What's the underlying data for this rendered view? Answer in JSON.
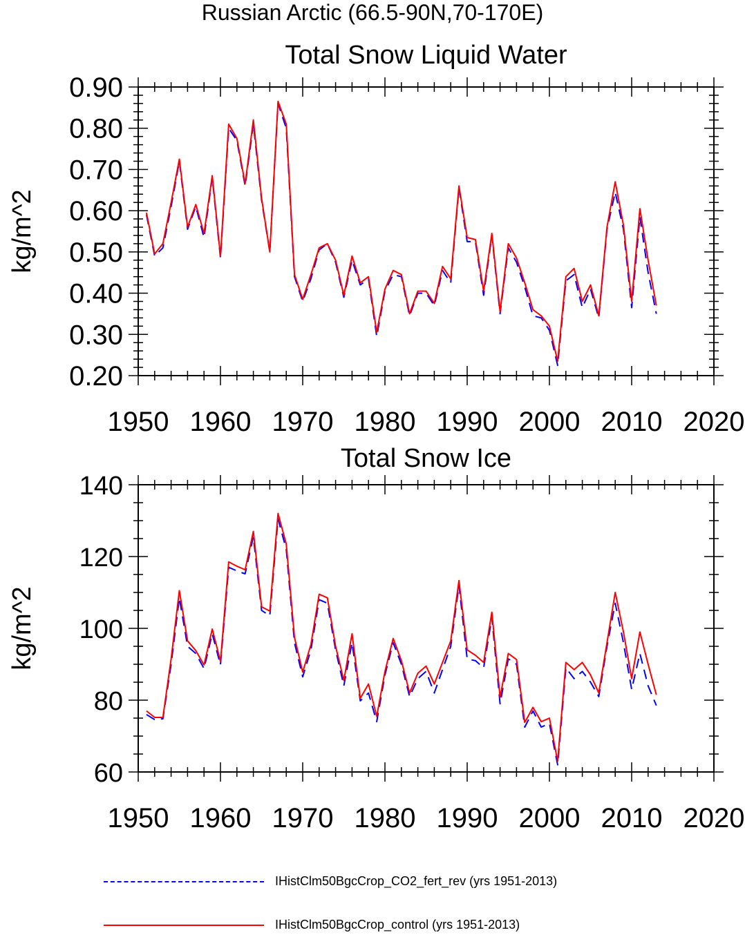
{
  "figure": {
    "title": "Russian Arctic (66.5-90N,70-170E)"
  },
  "legend": [
    {
      "label": "IHistClm50BgcCrop_CO2_fert_rev (yrs 1951-2013)",
      "color": "#0000ff",
      "style": "dashed"
    },
    {
      "label": "IHistClm50BgcCrop_control (yrs 1951-2013)",
      "color": "#ff0000",
      "style": "solid"
    }
  ],
  "chart_data": [
    {
      "type": "line",
      "title": "Total Snow Liquid Water",
      "ylabel": "kg/m^2",
      "xlabel": "",
      "xlim": [
        1950,
        2020
      ],
      "ylim": [
        0.2,
        0.9
      ],
      "xticks": [
        "1950",
        "1960",
        "1970",
        "1980",
        "1990",
        "2000",
        "2010",
        "2020"
      ],
      "yticks": [
        "0.20",
        "0.30",
        "0.40",
        "0.50",
        "0.60",
        "0.70",
        "0.80",
        "0.90"
      ],
      "x": [
        1951,
        1952,
        1953,
        1954,
        1955,
        1956,
        1957,
        1958,
        1959,
        1960,
        1961,
        1962,
        1963,
        1964,
        1965,
        1966,
        1967,
        1968,
        1969,
        1970,
        1971,
        1972,
        1973,
        1974,
        1975,
        1976,
        1977,
        1978,
        1979,
        1980,
        1981,
        1982,
        1983,
        1984,
        1985,
        1986,
        1987,
        1988,
        1989,
        1990,
        1991,
        1992,
        1993,
        1994,
        1995,
        1996,
        1997,
        1998,
        1999,
        2000,
        2001,
        2002,
        2003,
        2004,
        2005,
        2006,
        2007,
        2008,
        2009,
        2010,
        2011,
        2012,
        2013
      ],
      "series": [
        {
          "name": "IHistClm50BgcCrop_CO2_fert_rev (yrs 1951-2013)",
          "color": "#0000ff",
          "style": "dashed",
          "values": [
            0.59,
            0.49,
            0.51,
            0.61,
            0.72,
            0.555,
            0.61,
            0.535,
            0.68,
            0.485,
            0.8,
            0.77,
            0.66,
            0.81,
            0.625,
            0.5,
            0.86,
            0.8,
            0.44,
            0.38,
            0.435,
            0.505,
            0.52,
            0.475,
            0.39,
            0.48,
            0.42,
            0.435,
            0.295,
            0.405,
            0.445,
            0.44,
            0.345,
            0.4,
            0.4,
            0.37,
            0.455,
            0.425,
            0.655,
            0.525,
            0.525,
            0.395,
            0.54,
            0.35,
            0.51,
            0.475,
            0.415,
            0.345,
            0.34,
            0.31,
            0.225,
            0.43,
            0.445,
            0.365,
            0.41,
            0.34,
            0.555,
            0.645,
            0.555,
            0.365,
            0.585,
            0.45,
            0.35
          ]
        },
        {
          "name": "IHistClm50BgcCrop_control (yrs 1951-2013)",
          "color": "#ff0000",
          "style": "solid",
          "values": [
            0.595,
            0.495,
            0.52,
            0.62,
            0.725,
            0.56,
            0.615,
            0.545,
            0.685,
            0.49,
            0.81,
            0.775,
            0.665,
            0.82,
            0.63,
            0.5,
            0.865,
            0.81,
            0.445,
            0.385,
            0.445,
            0.51,
            0.52,
            0.48,
            0.395,
            0.49,
            0.425,
            0.44,
            0.305,
            0.41,
            0.455,
            0.445,
            0.35,
            0.405,
            0.405,
            0.375,
            0.465,
            0.435,
            0.66,
            0.535,
            0.53,
            0.405,
            0.545,
            0.355,
            0.52,
            0.485,
            0.425,
            0.36,
            0.345,
            0.32,
            0.235,
            0.44,
            0.46,
            0.38,
            0.42,
            0.345,
            0.56,
            0.67,
            0.565,
            0.38,
            0.605,
            0.48,
            0.37
          ]
        }
      ]
    },
    {
      "type": "line",
      "title": "Total Snow Ice",
      "ylabel": "kg/m^2",
      "xlabel": "",
      "xlim": [
        1950,
        2020
      ],
      "ylim": [
        60,
        140
      ],
      "xticks": [
        "1950",
        "1960",
        "1970",
        "1980",
        "1990",
        "2000",
        "2010",
        "2020"
      ],
      "yticks": [
        "60",
        "80",
        "100",
        "120",
        "140"
      ],
      "x": [
        1951,
        1952,
        1953,
        1954,
        1955,
        1956,
        1957,
        1958,
        1959,
        1960,
        1961,
        1962,
        1963,
        1964,
        1965,
        1966,
        1967,
        1968,
        1969,
        1970,
        1971,
        1972,
        1973,
        1974,
        1975,
        1976,
        1977,
        1978,
        1979,
        1980,
        1981,
        1982,
        1983,
        1984,
        1985,
        1986,
        1987,
        1988,
        1989,
        1990,
        1991,
        1992,
        1993,
        1994,
        1995,
        1996,
        1997,
        1998,
        1999,
        2000,
        2001,
        2002,
        2003,
        2004,
        2005,
        2006,
        2007,
        2008,
        2009,
        2010,
        2011,
        2012,
        2013
      ],
      "series": [
        {
          "name": "IHistClm50BgcCrop_CO2_fert_rev (yrs 1951-2013)",
          "color": "#0000ff",
          "style": "dashed",
          "values": [
            76.0,
            74.6,
            74.8,
            90.0,
            108.5,
            95.0,
            93.0,
            88.8,
            98.5,
            89.8,
            117.0,
            116.0,
            115.2,
            125.5,
            105.0,
            103.5,
            130.5,
            122.0,
            96.0,
            86.5,
            94.0,
            108.0,
            107.0,
            94.0,
            84.0,
            96.0,
            79.8,
            82.0,
            74.0,
            87.0,
            96.0,
            90.0,
            81.0,
            86.0,
            88.0,
            82.0,
            88.5,
            95.0,
            112.0,
            91.5,
            91.0,
            89.0,
            103.0,
            79.0,
            91.5,
            90.0,
            72.5,
            77.0,
            72.5,
            73.5,
            62.0,
            89.0,
            86.0,
            88.0,
            85.0,
            81.0,
            95.0,
            107.0,
            96.0,
            83.0,
            93.0,
            84.0,
            78.5
          ]
        },
        {
          "name": "IHistClm50BgcCrop_control (yrs 1951-2013)",
          "color": "#ff0000",
          "style": "solid",
          "values": [
            77.0,
            75.2,
            75.2,
            91.5,
            110.5,
            96.5,
            93.8,
            89.8,
            99.8,
            90.8,
            118.5,
            117.3,
            116.3,
            127.0,
            106.0,
            104.8,
            132.0,
            123.5,
            97.5,
            87.8,
            95.5,
            109.5,
            108.5,
            95.0,
            85.5,
            98.5,
            80.5,
            84.5,
            75.5,
            88.0,
            97.2,
            91.0,
            82.0,
            87.5,
            89.5,
            84.5,
            90.5,
            96.5,
            113.3,
            94.0,
            92.5,
            90.5,
            104.5,
            80.8,
            93.0,
            91.3,
            73.8,
            78.0,
            74.0,
            75.0,
            63.0,
            90.5,
            88.5,
            90.5,
            87.0,
            82.0,
            96.0,
            110.0,
            99.0,
            86.0,
            99.0,
            90.0,
            81.5
          ]
        }
      ]
    }
  ]
}
